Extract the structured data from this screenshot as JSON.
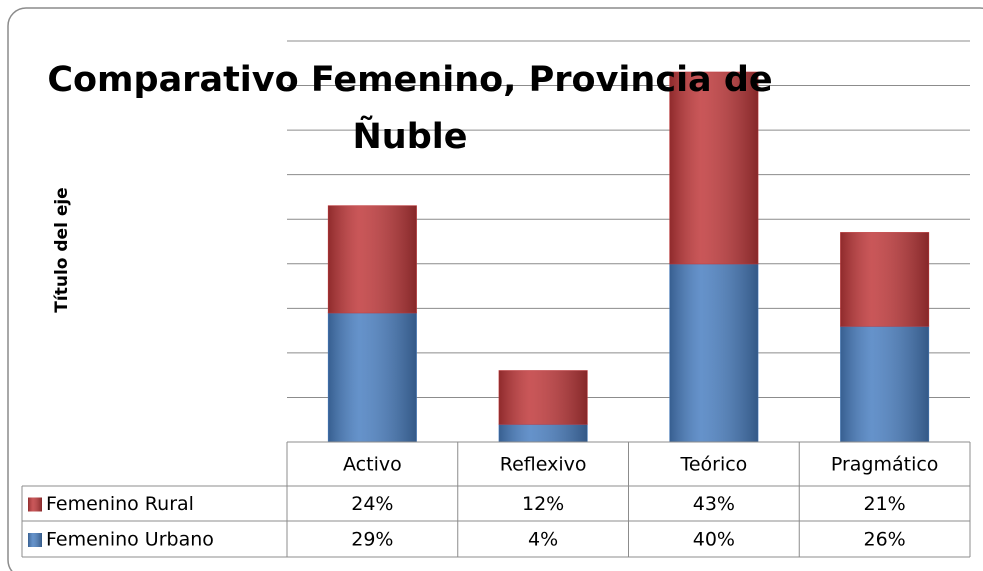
{
  "chart_data": {
    "type": "stacked_bar",
    "title": "Comparativo Femenino, Provincia de Ñuble",
    "y_label": "Título del eje",
    "categories": [
      "Activo",
      "Reflexivo",
      "Teórico",
      "Pragmático"
    ],
    "series": [
      {
        "name": "Femenino Rural",
        "color": "#c0393b",
        "values": [
          24,
          12,
          43,
          21
        ],
        "value_labels": [
          "24%",
          "12%",
          "43%",
          "21%"
        ]
      },
      {
        "name": "Femenino Urbano",
        "color": "#4a7fc1",
        "values": [
          29,
          4,
          40,
          26
        ],
        "value_labels": [
          "29%",
          "4%",
          "40%",
          "26%"
        ]
      }
    ],
    "ylim": [
      0,
      90
    ],
    "yticks": [
      0,
      10,
      20,
      30,
      40,
      50,
      60,
      70,
      80,
      90
    ],
    "grid": true
  }
}
